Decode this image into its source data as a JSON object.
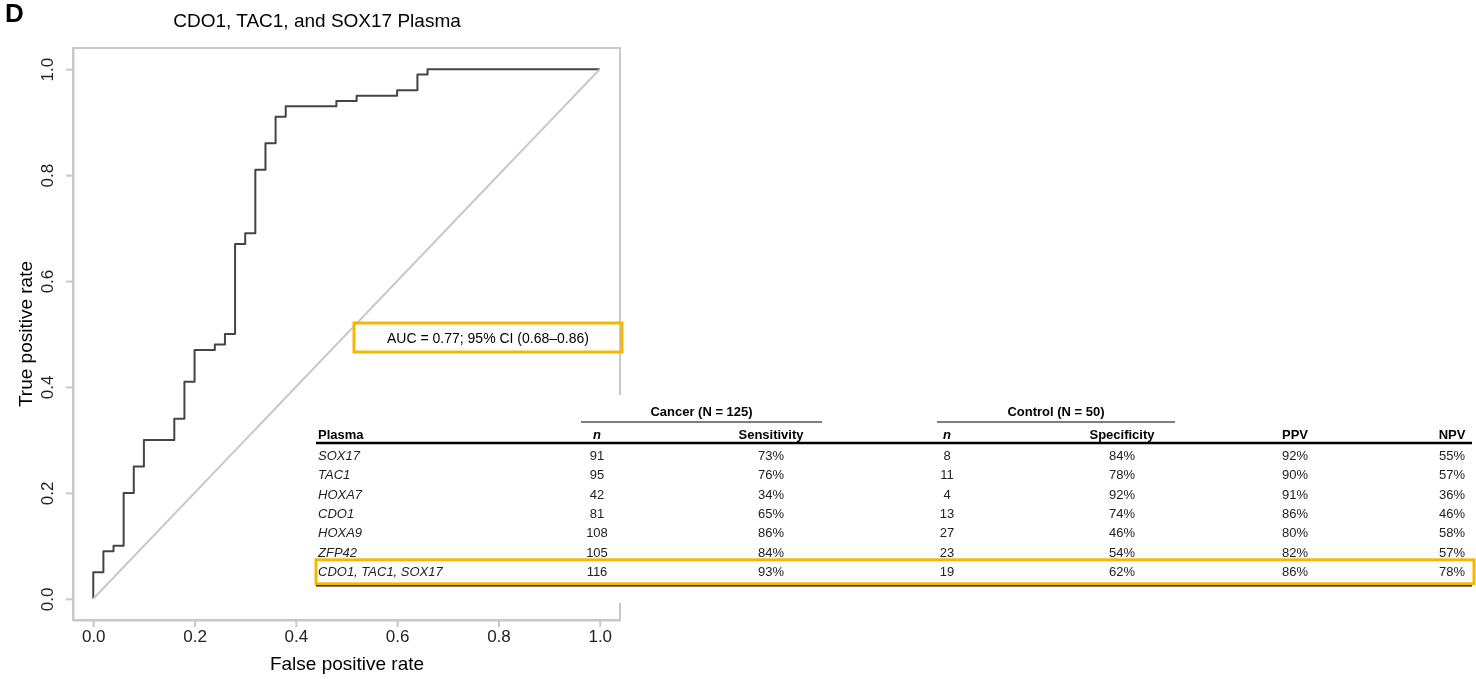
{
  "chart_data": [
    {
      "type": "step",
      "title": "CDO1, TAC1, and SOX17 Plasma",
      "xlabel": "False positive rate",
      "ylabel": "True positive rate",
      "xlim": [
        -0.04,
        1.04
      ],
      "ylim": [
        -0.04,
        1.04
      ],
      "xticks": [
        {
          "value": 0,
          "label": "0.0"
        },
        0.2,
        0.4,
        0.6,
        0.8,
        {
          "value": 1,
          "label": "1.0"
        }
      ],
      "yticks": [
        {
          "value": 0,
          "label": "0.0"
        },
        0.2,
        0.4,
        0.6,
        0.8,
        {
          "value": 1,
          "label": "1.0"
        }
      ],
      "grid": false,
      "annotations": [
        "D",
        "AUC = 0.77; 95% CI (0.68–0.86)"
      ],
      "series": [
        {
          "type": "step",
          "color": "#444444",
          "x": [
            0,
            0,
            0.02,
            0.04,
            0.06,
            0.08,
            0.1,
            0.16,
            0.18,
            0.2,
            0.24,
            0.26,
            0.28,
            0.3,
            0.32,
            0.34,
            0.36,
            0.38,
            0.48,
            0.52,
            0.6,
            0.64,
            0.66,
            1
          ],
          "values": [
            0,
            0.05,
            0.09,
            0.1,
            0.2,
            0.25,
            0.3,
            0.34,
            0.41,
            0.47,
            0.48,
            0.5,
            0.67,
            0.69,
            0.81,
            0.86,
            0.91,
            0.93,
            0.94,
            0.95,
            0.96,
            0.99,
            1,
            1
          ]
        },
        {
          "type": "line",
          "color": "#c8c8c8",
          "x": [
            0,
            1
          ],
          "values": [
            0,
            1
          ]
        }
      ]
    },
    {
      "type": "other",
      "xlabel": "Plasma",
      "annotations": [
        "Cancer (N = 125)",
        "Control (N = 50)"
      ],
      "categories": [
        "SOX17",
        "TAC1",
        "HOXA7",
        "CDO1",
        "HOXA9",
        "ZFP42",
        "CDO1, TAC1, SOX17"
      ],
      "series": [
        {
          "name": "n",
          "values": [
            91,
            95,
            42,
            81,
            108,
            105,
            116
          ],
          "value_labels": [
            "91",
            "95",
            "42",
            "81",
            "108",
            "105",
            "116"
          ]
        },
        {
          "name": "Sensitivity",
          "values": [
            73,
            76,
            34,
            65,
            86,
            84,
            93
          ],
          "value_labels": [
            "73%",
            "76%",
            "34%",
            "65%",
            "86%",
            "84%",
            "93%"
          ]
        },
        {
          "name": "n",
          "values": [
            8,
            11,
            4,
            13,
            27,
            23,
            19
          ],
          "value_labels": [
            "8",
            "11",
            "4",
            "13",
            "27",
            "23",
            "19"
          ]
        },
        {
          "name": "Specificity",
          "values": [
            84,
            78,
            92,
            74,
            46,
            54,
            62
          ],
          "value_labels": [
            "84%",
            "78%",
            "92%",
            "74%",
            "46%",
            "54%",
            "62%"
          ]
        },
        {
          "name": "PPV",
          "values": [
            92,
            90,
            91,
            86,
            80,
            82,
            86
          ],
          "value_labels": [
            "92%",
            "90%",
            "91%",
            "86%",
            "80%",
            "82%",
            "86%"
          ]
        },
        {
          "name": "NPV",
          "values": [
            55,
            57,
            36,
            46,
            58,
            57,
            78
          ],
          "value_labels": [
            "55%",
            "57%",
            "36%",
            "46%",
            "58%",
            "57%",
            "78%"
          ]
        }
      ]
    }
  ]
}
